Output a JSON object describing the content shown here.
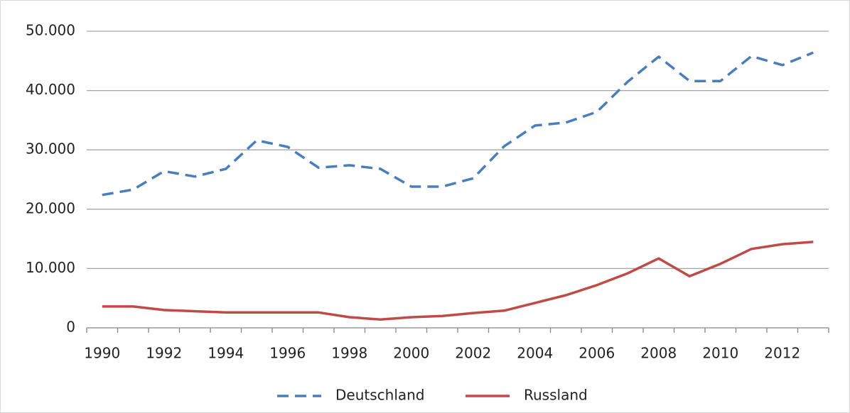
{
  "chart_data": {
    "type": "line",
    "categories": [
      "1990",
      null,
      "1992",
      null,
      "1994",
      null,
      "1996",
      null,
      "1998",
      null,
      "2000",
      null,
      "2002",
      null,
      "2004",
      null,
      "2006",
      null,
      "2008",
      null,
      "2010",
      null,
      "2012",
      null
    ],
    "series": [
      {
        "name": "Deutschland",
        "color": "#4a7ebb",
        "dashed": true,
        "values": [
          22400,
          23300,
          26400,
          25500,
          26800,
          31600,
          30500,
          27000,
          27400,
          26800,
          23800,
          23800,
          25200,
          30600,
          34100,
          34600,
          36400,
          41500,
          45700,
          41600,
          41600,
          45800,
          44300,
          46400
        ]
      },
      {
        "name": "Russland",
        "color": "#be4b48",
        "dashed": false,
        "values": [
          3600,
          3600,
          3000,
          2800,
          2600,
          2600,
          2600,
          2600,
          1800,
          1400,
          1800,
          2000,
          2500,
          2900,
          4200,
          5500,
          7200,
          9200,
          11700,
          8700,
          10800,
          13300,
          14100,
          14500
        ]
      }
    ],
    "ylim": [
      0,
      50000
    ],
    "yticks": [
      0,
      {
        "value": 10000,
        "label": "10.000"
      },
      {
        "value": 20000,
        "label": "20.000"
      },
      {
        "value": 30000,
        "label": "30.000"
      },
      {
        "value": 40000,
        "label": "40.000"
      },
      {
        "value": 50000,
        "label": "50.000"
      }
    ],
    "grid": true,
    "legend": "bottom"
  }
}
